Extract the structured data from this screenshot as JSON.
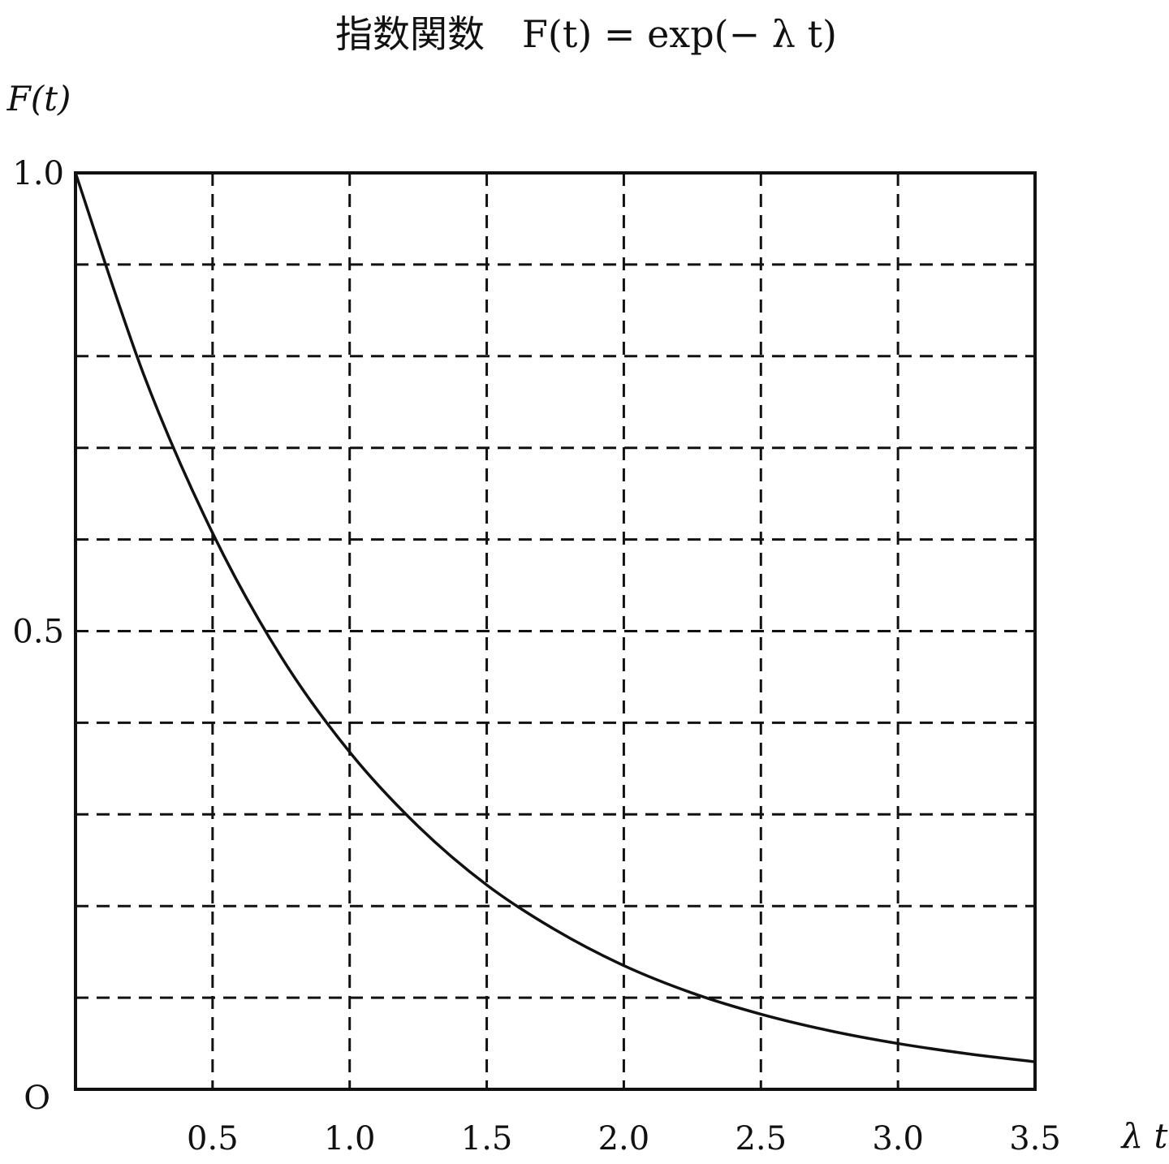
{
  "chart_data": {
    "type": "line",
    "title": "指数関数　F(t) = exp(− λ t)",
    "xlabel": "λ t",
    "ylabel": "F(t)",
    "origin_label": "O",
    "xlim": [
      0,
      3.5
    ],
    "ylim": [
      0,
      1.0
    ],
    "x_ticks": [
      {
        "value": 0.5,
        "label": "0.5"
      },
      {
        "value": 1.0,
        "label": "1.0"
      },
      {
        "value": 1.5,
        "label": "1.5"
      },
      {
        "value": 2.0,
        "label": "2.0"
      },
      {
        "value": 2.5,
        "label": "2.5"
      },
      {
        "value": 3.0,
        "label": "3.0"
      },
      {
        "value": 3.5,
        "label": "3.5"
      }
    ],
    "y_ticks": [
      {
        "value": 0.5,
        "label": "0.5"
      },
      {
        "value": 1.0,
        "label": "1.0"
      }
    ],
    "grid": true,
    "grid_style": "dashed",
    "x_grid_values": [
      0.5,
      1.0,
      1.5,
      2.0,
      2.5,
      3.0
    ],
    "y_grid_values": [
      0.1,
      0.2,
      0.3,
      0.4,
      0.5,
      0.6,
      0.7,
      0.8,
      0.9
    ],
    "series": [
      {
        "x": [
          0,
          0.25,
          0.5,
          0.75,
          1.0,
          1.25,
          1.5,
          1.75,
          2.0,
          2.25,
          2.5,
          2.75,
          3.0,
          3.25,
          3.5
        ],
        "values": [
          1.0,
          0.779,
          0.607,
          0.472,
          0.368,
          0.287,
          0.223,
          0.174,
          0.135,
          0.105,
          0.082,
          0.064,
          0.05,
          0.039,
          0.03
        ]
      }
    ],
    "colors": {
      "line": "#111111",
      "grid": "#111111",
      "background": "#ffffff"
    }
  }
}
